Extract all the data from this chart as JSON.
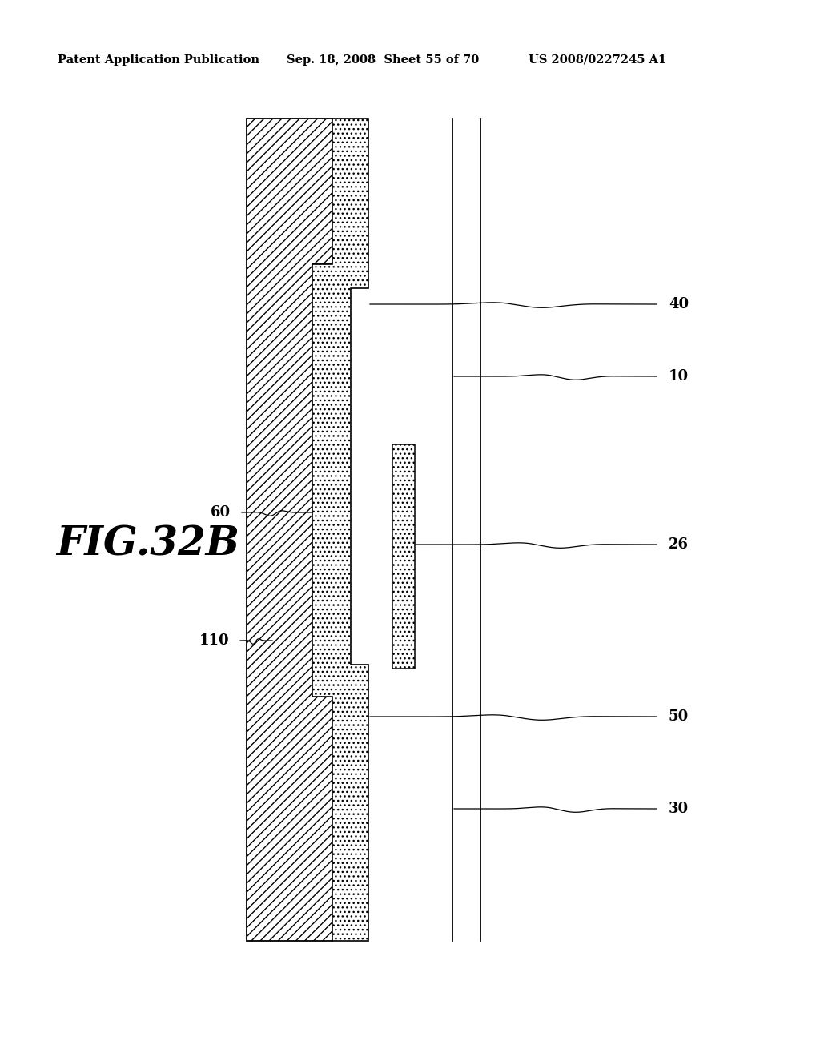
{
  "header_left": "Patent Application Publication",
  "header_mid": "Sep. 18, 2008  Sheet 55 of 70",
  "header_right": "US 2008/0227245 A1",
  "figure_label": "FIG.32B",
  "bg_color": "#ffffff",
  "hatch_main": "///",
  "hatch_dot": "...",
  "label_fontsize": 13,
  "fig_label_fontsize": 36,
  "header_fontsize": 10.5
}
